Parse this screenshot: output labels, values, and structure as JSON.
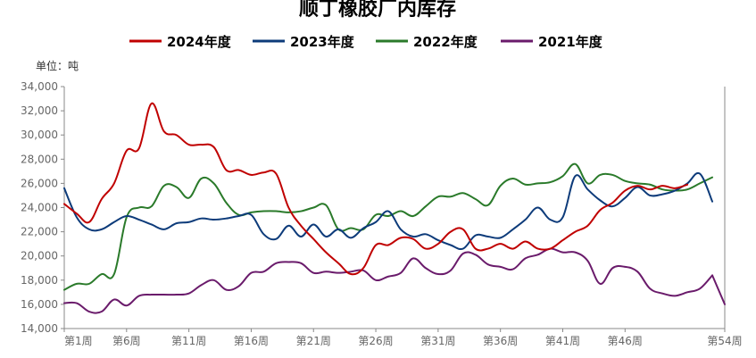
{
  "chart_data": {
    "type": "line",
    "title": "顺丁橡胶厂内库存",
    "unit_label": "单位：吨",
    "x_tick_labels": [
      "第1周",
      "第6周",
      "第11周",
      "第16周",
      "第21周",
      "第26周",
      "第31周",
      "第36周",
      "第41周",
      "第46周",
      "第54周"
    ],
    "x_tick_weeks": [
      1,
      6,
      11,
      16,
      21,
      26,
      31,
      36,
      41,
      46,
      54
    ],
    "xlim": [
      1,
      54
    ],
    "ylim": [
      14000,
      34000
    ],
    "y_ticks": [
      14000,
      16000,
      18000,
      20000,
      22000,
      24000,
      26000,
      28000,
      30000,
      32000,
      34000
    ],
    "y_tick_labels": [
      "14,000",
      "16,000",
      "18,000",
      "20,000",
      "22,000",
      "24,000",
      "26,000",
      "28,000",
      "30,000",
      "32,000",
      "34,000"
    ],
    "legend_position": "top-center",
    "series": [
      {
        "name": "2024年度",
        "color": "#c00000",
        "x": [
          1,
          2,
          3,
          4,
          5,
          6,
          7,
          8,
          9,
          10,
          11,
          12,
          13,
          14,
          15,
          16,
          17,
          18,
          19,
          20,
          21,
          22,
          23,
          24,
          25,
          26,
          27,
          28,
          29,
          30,
          31,
          32,
          33,
          34,
          35,
          36,
          37,
          38,
          39,
          40,
          41,
          42,
          43,
          44,
          45,
          46,
          47,
          48,
          49,
          50,
          51
        ],
        "values": [
          24300,
          23500,
          22800,
          24700,
          26000,
          28700,
          28900,
          32600,
          30300,
          30000,
          29200,
          29200,
          29000,
          27100,
          27100,
          26700,
          26900,
          26800,
          24000,
          22500,
          21400,
          20300,
          19400,
          18500,
          19000,
          20900,
          20900,
          21500,
          21400,
          20600,
          21000,
          22000,
          22200,
          20600,
          20600,
          21000,
          20600,
          21200,
          20600,
          20600,
          21300,
          22000,
          22500,
          23800,
          24400,
          25400,
          25800,
          25500,
          25800,
          25600,
          25900
        ]
      },
      {
        "name": "2023年度",
        "color": "#0d3b7a",
        "x": [
          1,
          2,
          3,
          4,
          5,
          6,
          7,
          8,
          9,
          10,
          11,
          12,
          13,
          14,
          15,
          16,
          17,
          18,
          19,
          20,
          21,
          22,
          23,
          24,
          25,
          26,
          27,
          28,
          29,
          30,
          31,
          32,
          33,
          34,
          35,
          36,
          37,
          38,
          39,
          40,
          41,
          42,
          43,
          44,
          45,
          46,
          47,
          48,
          49,
          50,
          51,
          52,
          53
        ],
        "values": [
          25600,
          23200,
          22200,
          22200,
          22800,
          23300,
          23000,
          22600,
          22200,
          22700,
          22800,
          23100,
          23000,
          23100,
          23300,
          23400,
          21800,
          21400,
          22500,
          21600,
          22600,
          21600,
          22200,
          21500,
          22300,
          22800,
          23700,
          22200,
          21600,
          21800,
          21300,
          20900,
          20600,
          21700,
          21600,
          21500,
          22200,
          23000,
          24000,
          23000,
          23200,
          26600,
          25500,
          24600,
          24100,
          24800,
          25700,
          25000,
          25100,
          25400,
          26000,
          26800,
          24500
        ]
      },
      {
        "name": "2022年度",
        "color": "#2a7a2a",
        "x": [
          1,
          2,
          3,
          4,
          5,
          6,
          7,
          8,
          9,
          10,
          11,
          12,
          13,
          14,
          15,
          16,
          17,
          18,
          19,
          20,
          21,
          22,
          23,
          24,
          25,
          26,
          27,
          28,
          29,
          30,
          31,
          32,
          33,
          34,
          35,
          36,
          37,
          38,
          39,
          40,
          41,
          42,
          43,
          44,
          45,
          46,
          47,
          48,
          49,
          50,
          51,
          52,
          53
        ],
        "values": [
          17200,
          17700,
          17700,
          18500,
          18500,
          23200,
          24000,
          24100,
          25800,
          25700,
          24800,
          26400,
          26000,
          24400,
          23400,
          23600,
          23700,
          23700,
          23600,
          23700,
          24000,
          24200,
          22200,
          22300,
          22200,
          23400,
          23300,
          23700,
          23300,
          24100,
          24900,
          24900,
          25200,
          24700,
          24200,
          25800,
          26400,
          25900,
          26000,
          26100,
          26600,
          27600,
          26000,
          26700,
          26700,
          26200,
          26000,
          25900,
          25500,
          25400,
          25500,
          26000,
          26500
        ]
      },
      {
        "name": "2021年度",
        "color": "#6a1b6b",
        "x": [
          1,
          2,
          3,
          4,
          5,
          6,
          7,
          8,
          9,
          10,
          11,
          12,
          13,
          14,
          15,
          16,
          17,
          18,
          19,
          20,
          21,
          22,
          23,
          24,
          25,
          26,
          27,
          28,
          29,
          30,
          31,
          32,
          33,
          34,
          35,
          36,
          37,
          38,
          39,
          40,
          41,
          42,
          43,
          44,
          45,
          46,
          47,
          48,
          49,
          50,
          51,
          52,
          53
        ],
        "values": [
          16100,
          16100,
          15400,
          15400,
          16400,
          15900,
          16700,
          16800,
          16800,
          16800,
          16900,
          17600,
          18000,
          17200,
          17500,
          18600,
          18700,
          19400,
          19500,
          19400,
          18600,
          18700,
          18600,
          18700,
          18800,
          18000,
          18300,
          18600,
          19800,
          19000,
          18500,
          18800,
          20200,
          20100,
          19300,
          19100,
          18900,
          19800,
          20100,
          20600,
          20300,
          20300,
          19600,
          17700,
          19000,
          19100,
          18700,
          17300,
          16900,
          16700,
          17000,
          17300,
          18400
        ]
      },
      {
        "name": "2021年度-tail",
        "color": "#6a1b6b",
        "x": [
          53,
          54
        ],
        "values": [
          18400,
          16000
        ],
        "hidden_from_legend": true
      }
    ]
  }
}
